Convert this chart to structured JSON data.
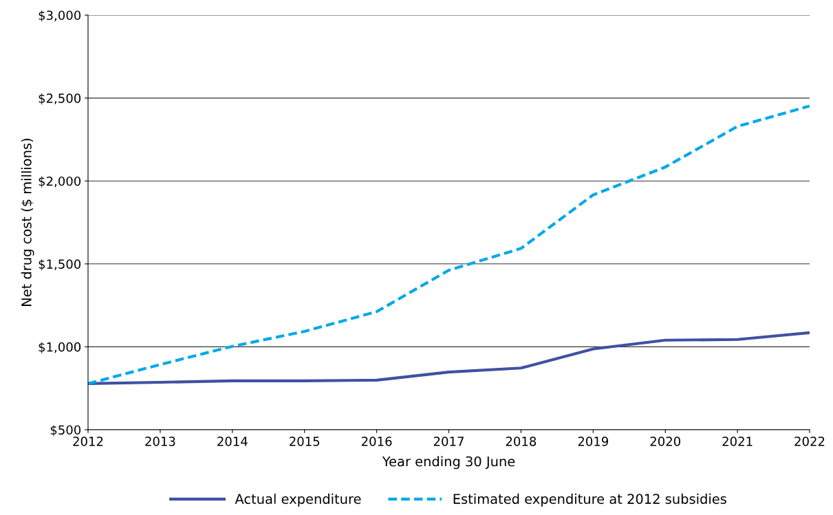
{
  "chart_data": {
    "type": "line",
    "xlabel": "Year ending 30 June",
    "ylabel": "Net drug cost ($ millions)",
    "x": [
      2012,
      2013,
      2014,
      2015,
      2016,
      2017,
      2018,
      2019,
      2020,
      2021,
      2022
    ],
    "series": [
      {
        "name": "Actual expenditure",
        "color": "#3f51a3",
        "line_style": "solid",
        "values": [
          778,
          786,
          795,
          795,
          799,
          848,
          872,
          987,
          1040,
          1044,
          1085
        ]
      },
      {
        "name": "Estimated expenditure at 2012 subsidies",
        "color": "#00a9e8",
        "line_style": "dashed",
        "values": [
          778,
          893,
          1003,
          1093,
          1212,
          1462,
          1593,
          1916,
          2084,
          2329,
          2452
        ]
      }
    ],
    "xlim": [
      2012,
      2022
    ],
    "xticks": [
      2012,
      2013,
      2014,
      2015,
      2016,
      2017,
      2018,
      2019,
      2020,
      2021,
      2022
    ],
    "ylim": [
      500,
      3000
    ],
    "yticks": [
      {
        "value": 500,
        "label": "$500"
      },
      {
        "value": 1000,
        "label": "$1,000"
      },
      {
        "value": 1500,
        "label": "$1,500"
      },
      {
        "value": 2000,
        "label": "$2,000"
      },
      {
        "value": 2500,
        "label": "$2,500"
      },
      {
        "value": 3000,
        "label": "$3,000"
      }
    ],
    "grid": "y",
    "legend": "bottom",
    "marker": "none"
  }
}
